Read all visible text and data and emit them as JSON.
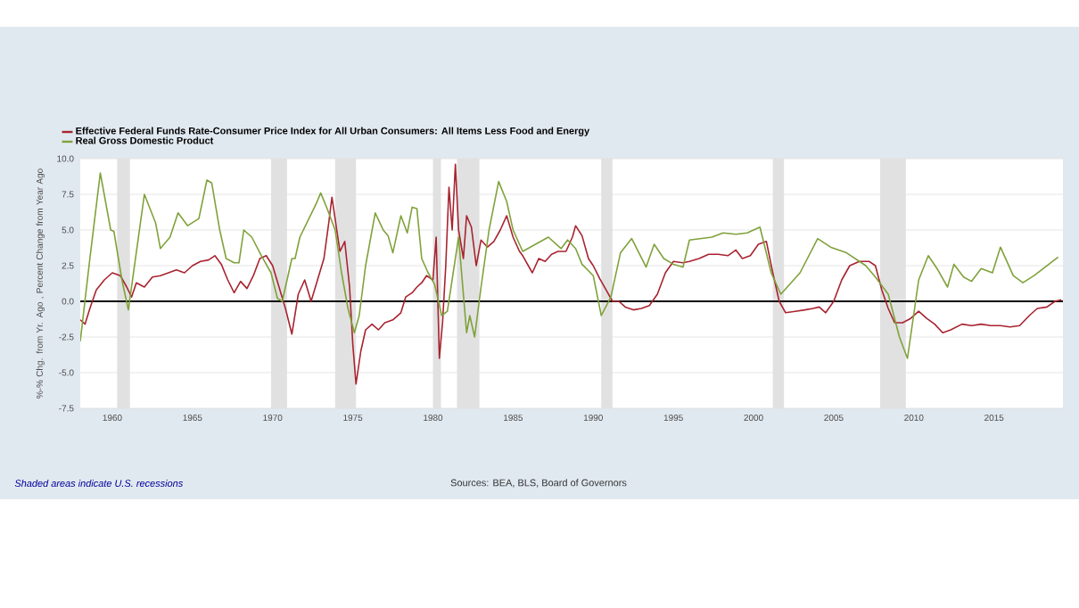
{
  "chart_data": {
    "type": "line",
    "ylabel": "%-% Chg. from Yr. Ago , Percent Change from Year Ago",
    "xlim": [
      1958,
      2019.3
    ],
    "ylim": [
      -7.5,
      10
    ],
    "xticks": [
      1960,
      1965,
      1970,
      1975,
      1980,
      1985,
      1990,
      1995,
      2000,
      2005,
      2010,
      2015
    ],
    "yticks": [
      {
        "value": -7.5,
        "label": "-7.5"
      },
      {
        "value": -5,
        "label": "-5.0"
      },
      {
        "value": -2.5,
        "label": "-2.5"
      },
      {
        "value": 0,
        "label": "0.0"
      },
      {
        "value": 2.5,
        "label": "2.5"
      },
      {
        "value": 5,
        "label": "5.0"
      },
      {
        "value": 7.5,
        "label": "7.5"
      },
      {
        "value": 10,
        "label": "10.0"
      }
    ],
    "grid": "y",
    "legend": "top left",
    "series": [
      {
        "name": "Effective Federal Funds Rate-Consumer Price Index for All Urban Consumers: All Items Less Food and Energy",
        "color": "#a8232f",
        "x": [
          1958.0,
          1958.3,
          1958.6,
          1959.0,
          1959.5,
          1960.0,
          1960.5,
          1960.9,
          1961.2,
          1961.5,
          1962.0,
          1962.5,
          1963.0,
          1963.5,
          1964.0,
          1964.5,
          1965.0,
          1965.5,
          1966.0,
          1966.4,
          1966.8,
          1967.2,
          1967.6,
          1968.0,
          1968.4,
          1968.8,
          1969.2,
          1969.6,
          1970.0,
          1970.4,
          1970.8,
          1971.2,
          1971.6,
          1972.0,
          1972.4,
          1972.8,
          1973.2,
          1973.5,
          1973.7,
          1974.0,
          1974.2,
          1974.5,
          1974.8,
          1975.0,
          1975.2,
          1975.5,
          1975.8,
          1976.2,
          1976.6,
          1977.0,
          1977.5,
          1978.0,
          1978.3,
          1978.7,
          1979.0,
          1979.3,
          1979.6,
          1980.0,
          1980.2,
          1980.4,
          1980.6,
          1980.8,
          1981.0,
          1981.2,
          1981.4,
          1981.6,
          1981.9,
          1982.1,
          1982.4,
          1982.7,
          1983.0,
          1983.4,
          1983.8,
          1984.2,
          1984.6,
          1985.0,
          1985.4,
          1985.6,
          1986.2,
          1986.6,
          1987.0,
          1987.4,
          1987.8,
          1988.3,
          1988.7,
          1988.9,
          1989.3,
          1989.7,
          1990.0,
          1990.4,
          1990.8,
          1991.2,
          1991.6,
          1992.0,
          1992.5,
          1993.0,
          1993.5,
          1994.0,
          1994.5,
          1995.0,
          1995.6,
          1996.0,
          1996.6,
          1997.2,
          1997.8,
          1998.4,
          1998.9,
          1999.3,
          1999.8,
          2000.3,
          2000.8,
          2001.2,
          2001.6,
          2002.0,
          2002.6,
          2003.2,
          2003.7,
          2004.1,
          2004.5,
          2005.0,
          2005.5,
          2006.0,
          2006.6,
          2007.2,
          2007.6,
          2008.0,
          2008.4,
          2008.8,
          2009.3,
          2009.8,
          2010.3,
          2010.8,
          2011.3,
          2011.8,
          2012.3,
          2013.0,
          2013.6,
          2014.2,
          2014.8,
          2015.4,
          2016.0,
          2016.6,
          2017.2,
          2017.7,
          2018.3,
          2018.8,
          2019.2
        ],
        "values": [
          -1.3,
          -1.6,
          -0.5,
          0.8,
          1.5,
          2.0,
          1.8,
          1.0,
          0.3,
          1.3,
          1.0,
          1.7,
          1.8,
          2.0,
          2.2,
          2.0,
          2.5,
          2.8,
          2.9,
          3.2,
          2.6,
          1.5,
          0.6,
          1.4,
          0.9,
          1.8,
          3.0,
          3.2,
          2.5,
          1.0,
          -0.5,
          -2.3,
          0.5,
          1.5,
          0.0,
          1.5,
          3.0,
          5.5,
          7.3,
          5.0,
          3.5,
          4.2,
          1.0,
          -3.0,
          -5.8,
          -3.5,
          -2.0,
          -1.6,
          -2.0,
          -1.5,
          -1.3,
          -0.8,
          0.3,
          0.6,
          1.0,
          1.3,
          1.8,
          1.5,
          4.5,
          -4.0,
          -1.5,
          2.5,
          8.0,
          5.0,
          9.6,
          5.0,
          3.0,
          6.0,
          5.2,
          2.5,
          4.3,
          3.8,
          4.2,
          5.0,
          6.0,
          4.5,
          3.5,
          3.2,
          2.0,
          3.0,
          2.8,
          3.3,
          3.5,
          3.5,
          4.5,
          5.3,
          4.6,
          3.0,
          2.5,
          1.6,
          0.8,
          0.0,
          0.0,
          -0.4,
          -0.6,
          -0.5,
          -0.3,
          0.5,
          2.0,
          2.8,
          2.7,
          2.8,
          3.0,
          3.3,
          3.3,
          3.2,
          3.6,
          3.0,
          3.2,
          4.0,
          4.2,
          2.0,
          0.0,
          -0.8,
          -0.7,
          -0.6,
          -0.5,
          -0.4,
          -0.8,
          0.0,
          1.5,
          2.5,
          2.8,
          2.8,
          2.5,
          0.8,
          -0.5,
          -1.5,
          -1.5,
          -1.2,
          -0.7,
          -1.2,
          -1.6,
          -2.2,
          -2.0,
          -1.6,
          -1.7,
          -1.6,
          -1.7,
          -1.7,
          -1.8,
          -1.7,
          -1.0,
          -0.5,
          -0.4,
          0.0,
          0.1
        ]
      },
      {
        "name": "Real Gross Domestic Product",
        "color": "#7fa23a",
        "x": [
          1958.0,
          1958.6,
          1959.25,
          1959.9,
          1960.1,
          1960.6,
          1961.0,
          1962.0,
          1962.7,
          1963.0,
          1963.6,
          1964.1,
          1964.7,
          1965.4,
          1965.9,
          1966.2,
          1966.7,
          1967.1,
          1967.6,
          1967.9,
          1968.2,
          1968.7,
          1969.3,
          1969.9,
          1970.3,
          1970.6,
          1971.2,
          1971.4,
          1971.7,
          1972.7,
          1973.0,
          1973.4,
          1973.9,
          1974.3,
          1974.7,
          1975.1,
          1975.4,
          1975.8,
          1976.4,
          1976.9,
          1977.2,
          1977.5,
          1978.0,
          1978.4,
          1978.7,
          1979.0,
          1979.3,
          1979.7,
          1980.1,
          1980.55,
          1980.9,
          1981.6,
          1982.1,
          1982.3,
          1982.6,
          1983.0,
          1983.5,
          1984.1,
          1984.6,
          1985.0,
          1985.6,
          1987.2,
          1988.0,
          1988.4,
          1988.9,
          1989.3,
          1990.0,
          1990.5,
          1991.1,
          1991.7,
          1992.4,
          1993.3,
          1993.8,
          1994.4,
          1995.0,
          1995.6,
          1996.0,
          1997.4,
          1998.1,
          1998.9,
          1999.6,
          2000.4,
          2001.1,
          2001.7,
          2002.1,
          2002.9,
          2004.0,
          2004.8,
          2005.8,
          2007.0,
          2007.6,
          2008.4,
          2009.1,
          2009.6,
          2010.3,
          2010.9,
          2011.5,
          2012.1,
          2012.5,
          2013.1,
          2013.6,
          2014.2,
          2014.9,
          2015.4,
          2016.2,
          2016.8,
          2017.5,
          2019.0
        ],
        "values": [
          -2.8,
          3.0,
          9.0,
          5.0,
          4.9,
          1.5,
          -0.6,
          7.5,
          5.5,
          3.7,
          4.5,
          6.2,
          5.3,
          5.8,
          8.5,
          8.3,
          5.0,
          3.0,
          2.7,
          2.7,
          5.0,
          4.5,
          3.2,
          2.0,
          0.2,
          0.0,
          3.0,
          3.0,
          4.5,
          6.8,
          7.6,
          6.5,
          5.0,
          2.0,
          -0.5,
          -2.2,
          -1.0,
          2.5,
          6.2,
          5.0,
          4.6,
          3.4,
          6.0,
          4.8,
          6.6,
          6.5,
          3.0,
          2.0,
          1.2,
          -1.0,
          -0.7,
          4.5,
          -2.2,
          -1.0,
          -2.5,
          1.0,
          5.0,
          8.4,
          7.0,
          5.0,
          3.5,
          4.5,
          3.7,
          4.3,
          3.7,
          2.6,
          1.8,
          -1.0,
          0.3,
          3.4,
          4.4,
          2.4,
          4.0,
          3.0,
          2.6,
          2.4,
          4.3,
          4.5,
          4.8,
          4.7,
          4.8,
          5.2,
          2.0,
          0.5,
          1.0,
          2.0,
          4.4,
          3.8,
          3.4,
          2.5,
          1.7,
          0.5,
          -2.5,
          -4.0,
          1.5,
          3.2,
          2.2,
          1.0,
          2.6,
          1.7,
          1.4,
          2.3,
          2.0,
          3.8,
          1.8,
          1.3,
          1.8,
          3.1
        ]
      }
    ],
    "ref_lines": [
      {
        "axis": "y",
        "value": 0,
        "color": "#000000"
      }
    ],
    "bands": [
      {
        "axis": "x",
        "from": 1960.3,
        "to": 1961.1,
        "color": "#e1e1e1"
      },
      {
        "axis": "x",
        "from": 1969.9,
        "to": 1970.9,
        "color": "#e1e1e1"
      },
      {
        "axis": "x",
        "from": 1973.9,
        "to": 1975.2,
        "color": "#e1e1e1"
      },
      {
        "axis": "x",
        "from": 1980.0,
        "to": 1980.5,
        "color": "#e1e1e1"
      },
      {
        "axis": "x",
        "from": 1981.5,
        "to": 1982.9,
        "color": "#e1e1e1"
      },
      {
        "axis": "x",
        "from": 1990.5,
        "to": 1991.2,
        "color": "#e1e1e1"
      },
      {
        "axis": "x",
        "from": 2001.2,
        "to": 2001.9,
        "color": "#e1e1e1"
      },
      {
        "axis": "x",
        "from": 2007.9,
        "to": 2009.5,
        "color": "#e1e1e1"
      }
    ],
    "annotations": [
      "Shaded areas indicate U.S. recessions",
      "Sources: BEA, BLS, Board of Governors"
    ]
  }
}
